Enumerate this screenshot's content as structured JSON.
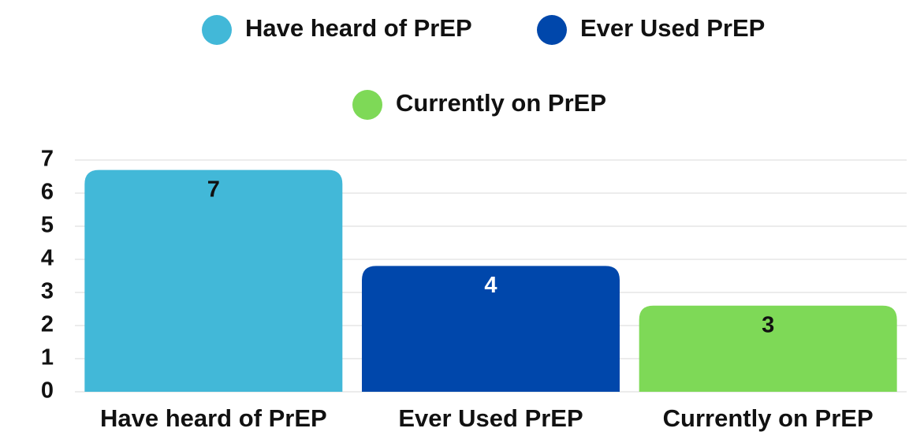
{
  "chart_data": {
    "type": "bar",
    "categories": [
      "Have heard of PrEP",
      "Ever Used PrEP",
      "Currently on PrEP"
    ],
    "values": [
      6.7,
      3.8,
      2.6
    ],
    "value_labels": [
      "7",
      "4",
      "3"
    ],
    "colors": [
      "#42b8d8",
      "#0047ab",
      "#7ed957"
    ],
    "ylim": [
      0,
      7
    ],
    "yticks": [
      0,
      1,
      2,
      3,
      4,
      5,
      6,
      7
    ],
    "grid": true
  }
}
